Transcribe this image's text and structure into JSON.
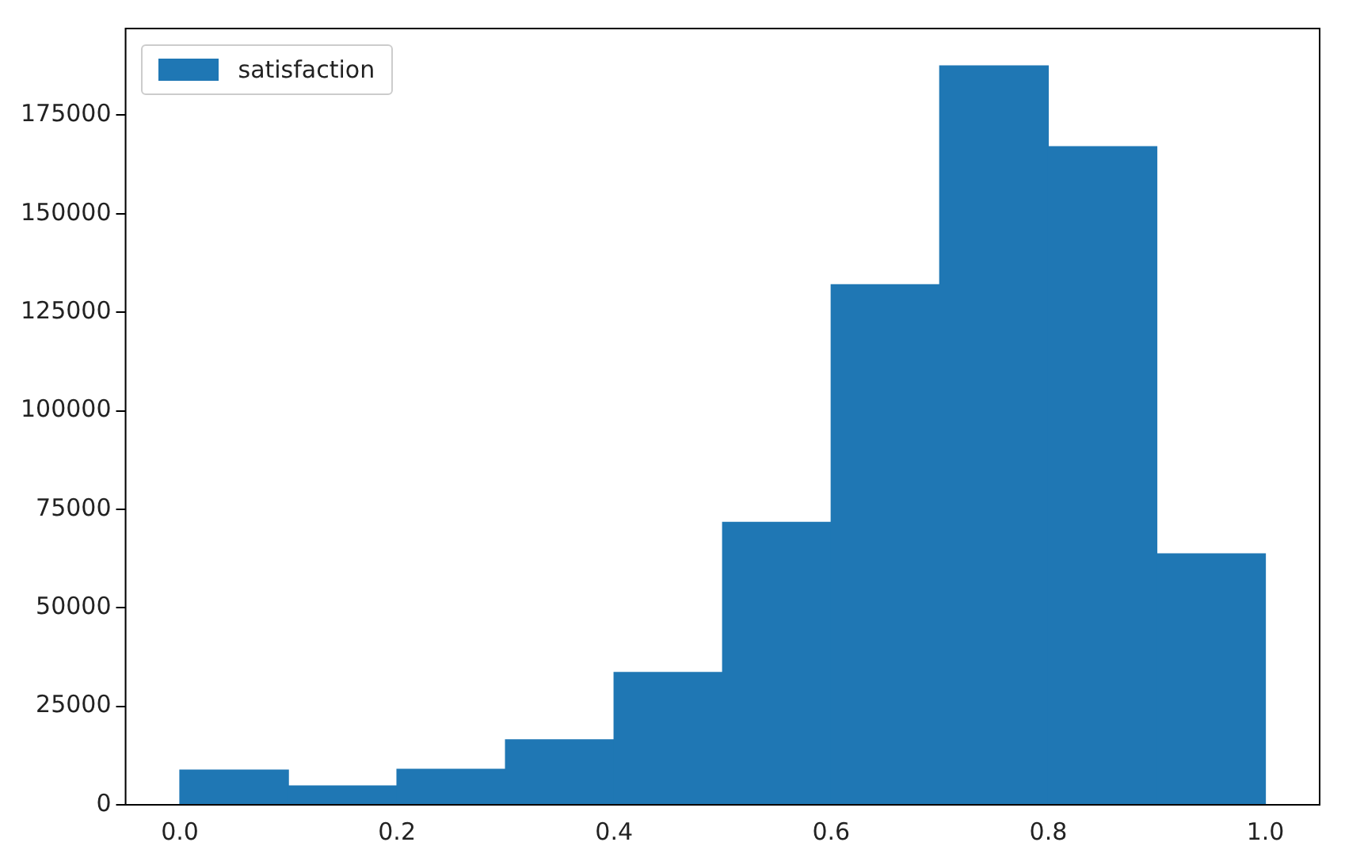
{
  "chart_data": {
    "type": "histogram",
    "bins": [
      0,
      0.1,
      0.2,
      0.3,
      0.4,
      0.5,
      0.6,
      0.7,
      0.8,
      0.9,
      1.0
    ],
    "series": [
      {
        "name": "satisfaction",
        "color": "#1f77b4",
        "values": [
          8800,
          4800,
          9000,
          16500,
          33600,
          71700,
          132000,
          187500,
          167000,
          63700
        ]
      }
    ],
    "xlim": [
      -0.05,
      1.05
    ],
    "xticks": [
      {
        "value": 0,
        "label": "0.0"
      },
      {
        "value": 0.2,
        "label": "0.2"
      },
      {
        "value": 0.4,
        "label": "0.4"
      },
      {
        "value": 0.6,
        "label": "0.6"
      },
      {
        "value": 0.8,
        "label": "0.8"
      },
      {
        "value": 1,
        "label": "1.0"
      }
    ],
    "ylim": [
      0,
      197000
    ],
    "yticks": [
      0,
      25000,
      50000,
      75000,
      100000,
      125000,
      150000,
      175000
    ],
    "legend": "top left",
    "grid": false
  }
}
